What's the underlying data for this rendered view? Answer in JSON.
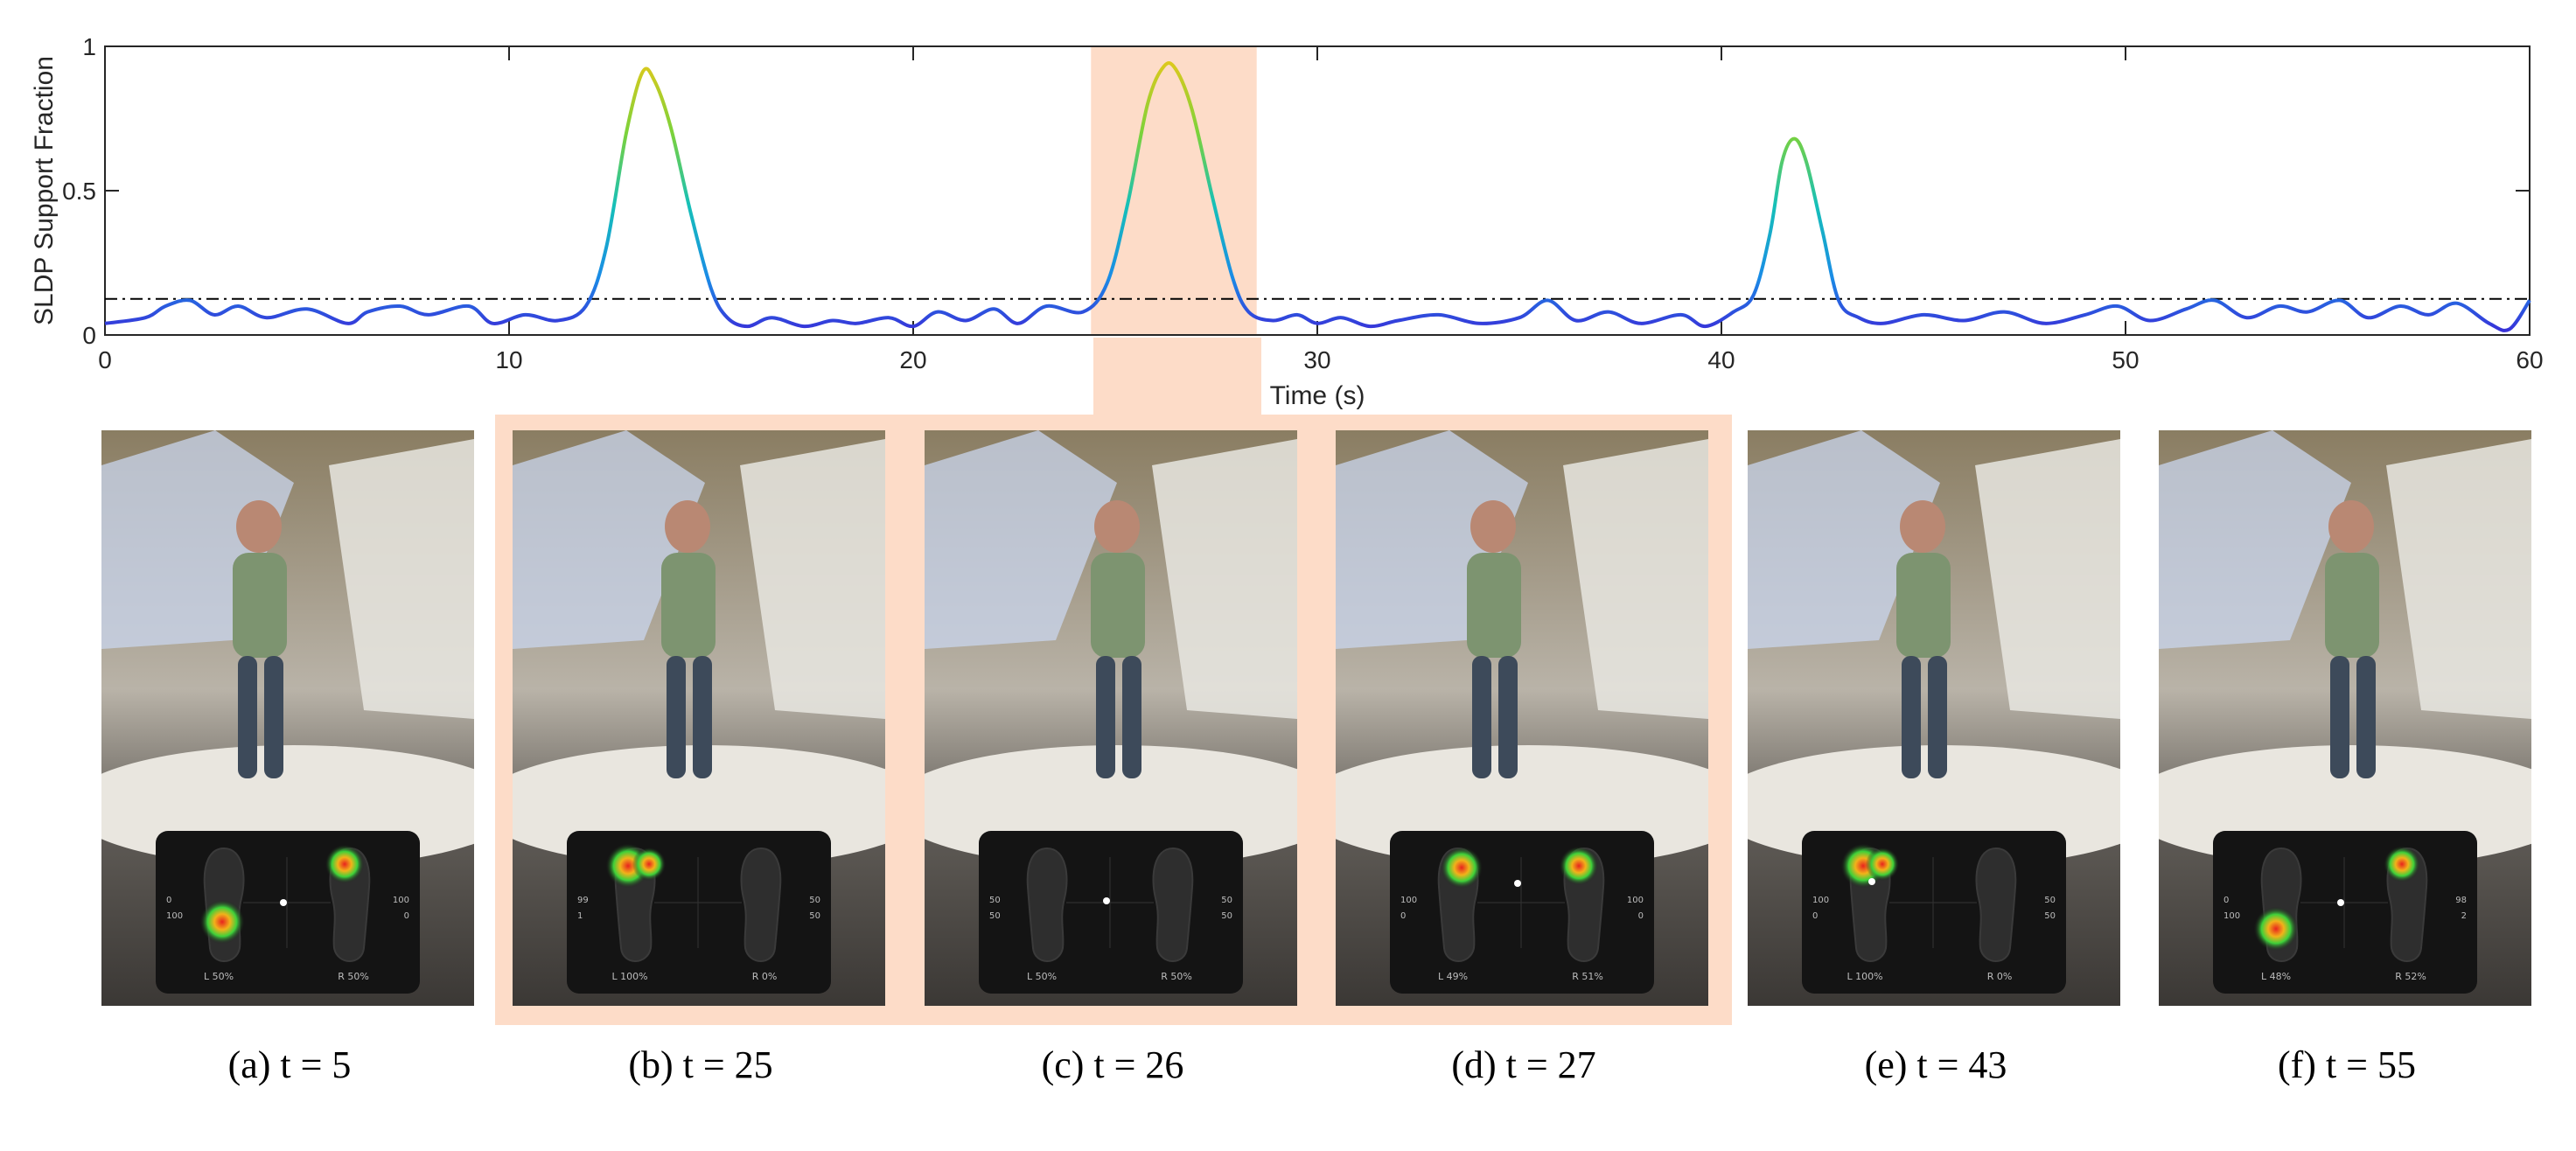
{
  "chart_data": {
    "type": "line",
    "title": "",
    "xlabel": "Time (s)",
    "ylabel": "SLDP Support Fraction",
    "xlim": [
      0,
      60
    ],
    "ylim": [
      0,
      1
    ],
    "xticks": [
      "0",
      "10",
      "20",
      "30",
      "40",
      "50",
      "60"
    ],
    "yticks": [
      "0",
      "0.5",
      "1"
    ],
    "grid": false,
    "threshold": 0.125,
    "threshold_style": "dash-dot",
    "highlight_x": [
      24.4,
      28.5
    ],
    "highlight_color": "#fddcc8",
    "series": [
      {
        "x": [
          0,
          1,
          1.5,
          2.1,
          2.7,
          3.3,
          4,
          5,
          6,
          6.5,
          7.3,
          8,
          9,
          9.6,
          10.4,
          11.2,
          11.9,
          12.4,
          12.9,
          13.3,
          13.6,
          14,
          14.5,
          15,
          15.4,
          15.9,
          16.5,
          17.3,
          18,
          18.6,
          19.4,
          20,
          20.6,
          21.3,
          22,
          22.6,
          23.3,
          24.2,
          24.8,
          25.3,
          25.8,
          26.2,
          26.5,
          26.9,
          27.4,
          27.9,
          28.3,
          28.9,
          29.5,
          30,
          30.6,
          31.3,
          32,
          33,
          34,
          35,
          35.7,
          36.4,
          37.2,
          38,
          39,
          39.6,
          40.3,
          40.8,
          41.2,
          41.5,
          41.8,
          42.1,
          42.5,
          42.9,
          43.4,
          44,
          45,
          46,
          47,
          48,
          49,
          49.8,
          50.6,
          51.5,
          52.2,
          53,
          53.8,
          54.5,
          55.3,
          56,
          56.8,
          57.5,
          58.2,
          59,
          59.5,
          60
        ],
        "y": [
          0.04,
          0.06,
          0.1,
          0.12,
          0.07,
          0.1,
          0.06,
          0.09,
          0.04,
          0.08,
          0.1,
          0.07,
          0.1,
          0.04,
          0.07,
          0.05,
          0.1,
          0.3,
          0.7,
          0.91,
          0.88,
          0.72,
          0.42,
          0.16,
          0.06,
          0.03,
          0.06,
          0.03,
          0.05,
          0.04,
          0.06,
          0.03,
          0.08,
          0.05,
          0.09,
          0.04,
          0.1,
          0.08,
          0.18,
          0.45,
          0.8,
          0.93,
          0.92,
          0.78,
          0.48,
          0.2,
          0.08,
          0.05,
          0.07,
          0.04,
          0.06,
          0.03,
          0.05,
          0.07,
          0.04,
          0.06,
          0.12,
          0.05,
          0.08,
          0.04,
          0.07,
          0.03,
          0.08,
          0.14,
          0.35,
          0.6,
          0.68,
          0.6,
          0.36,
          0.12,
          0.06,
          0.04,
          0.07,
          0.05,
          0.08,
          0.04,
          0.07,
          0.1,
          0.05,
          0.09,
          0.12,
          0.06,
          0.1,
          0.08,
          0.12,
          0.06,
          0.1,
          0.07,
          0.11,
          0.04,
          0.02,
          0.12
        ]
      }
    ]
  },
  "panels": [
    {
      "caption": "(a) t = 5",
      "left_value": "L 50%",
      "right_value": "R 50%",
      "left_scale": [
        "0",
        "100"
      ],
      "right_scale": [
        "100",
        "0"
      ]
    },
    {
      "caption": "(b) t = 25",
      "left_value": "L 100%",
      "right_value": "R 0%",
      "left_scale": [
        "99",
        "1"
      ],
      "right_scale": [
        "50",
        "50"
      ]
    },
    {
      "caption": "(c) t = 26",
      "left_value": "L 50%",
      "right_value": "R 50%",
      "left_scale": [
        "50",
        "50"
      ],
      "right_scale": [
        "50",
        "50"
      ]
    },
    {
      "caption": "(d) t = 27",
      "left_value": "L 49%",
      "right_value": "R 51%",
      "left_scale": [
        "100",
        "0"
      ],
      "right_scale": [
        "100",
        "0"
      ]
    },
    {
      "caption": "(e) t = 43",
      "left_value": "L 100%",
      "right_value": "R 0%",
      "left_scale": [
        "100",
        "0"
      ],
      "right_scale": [
        "50",
        "50"
      ]
    },
    {
      "caption": "(f) t = 55",
      "left_value": "L 48%",
      "right_value": "R 52%",
      "left_scale": [
        "0",
        "100"
      ],
      "right_scale": [
        "98",
        "2"
      ]
    }
  ]
}
